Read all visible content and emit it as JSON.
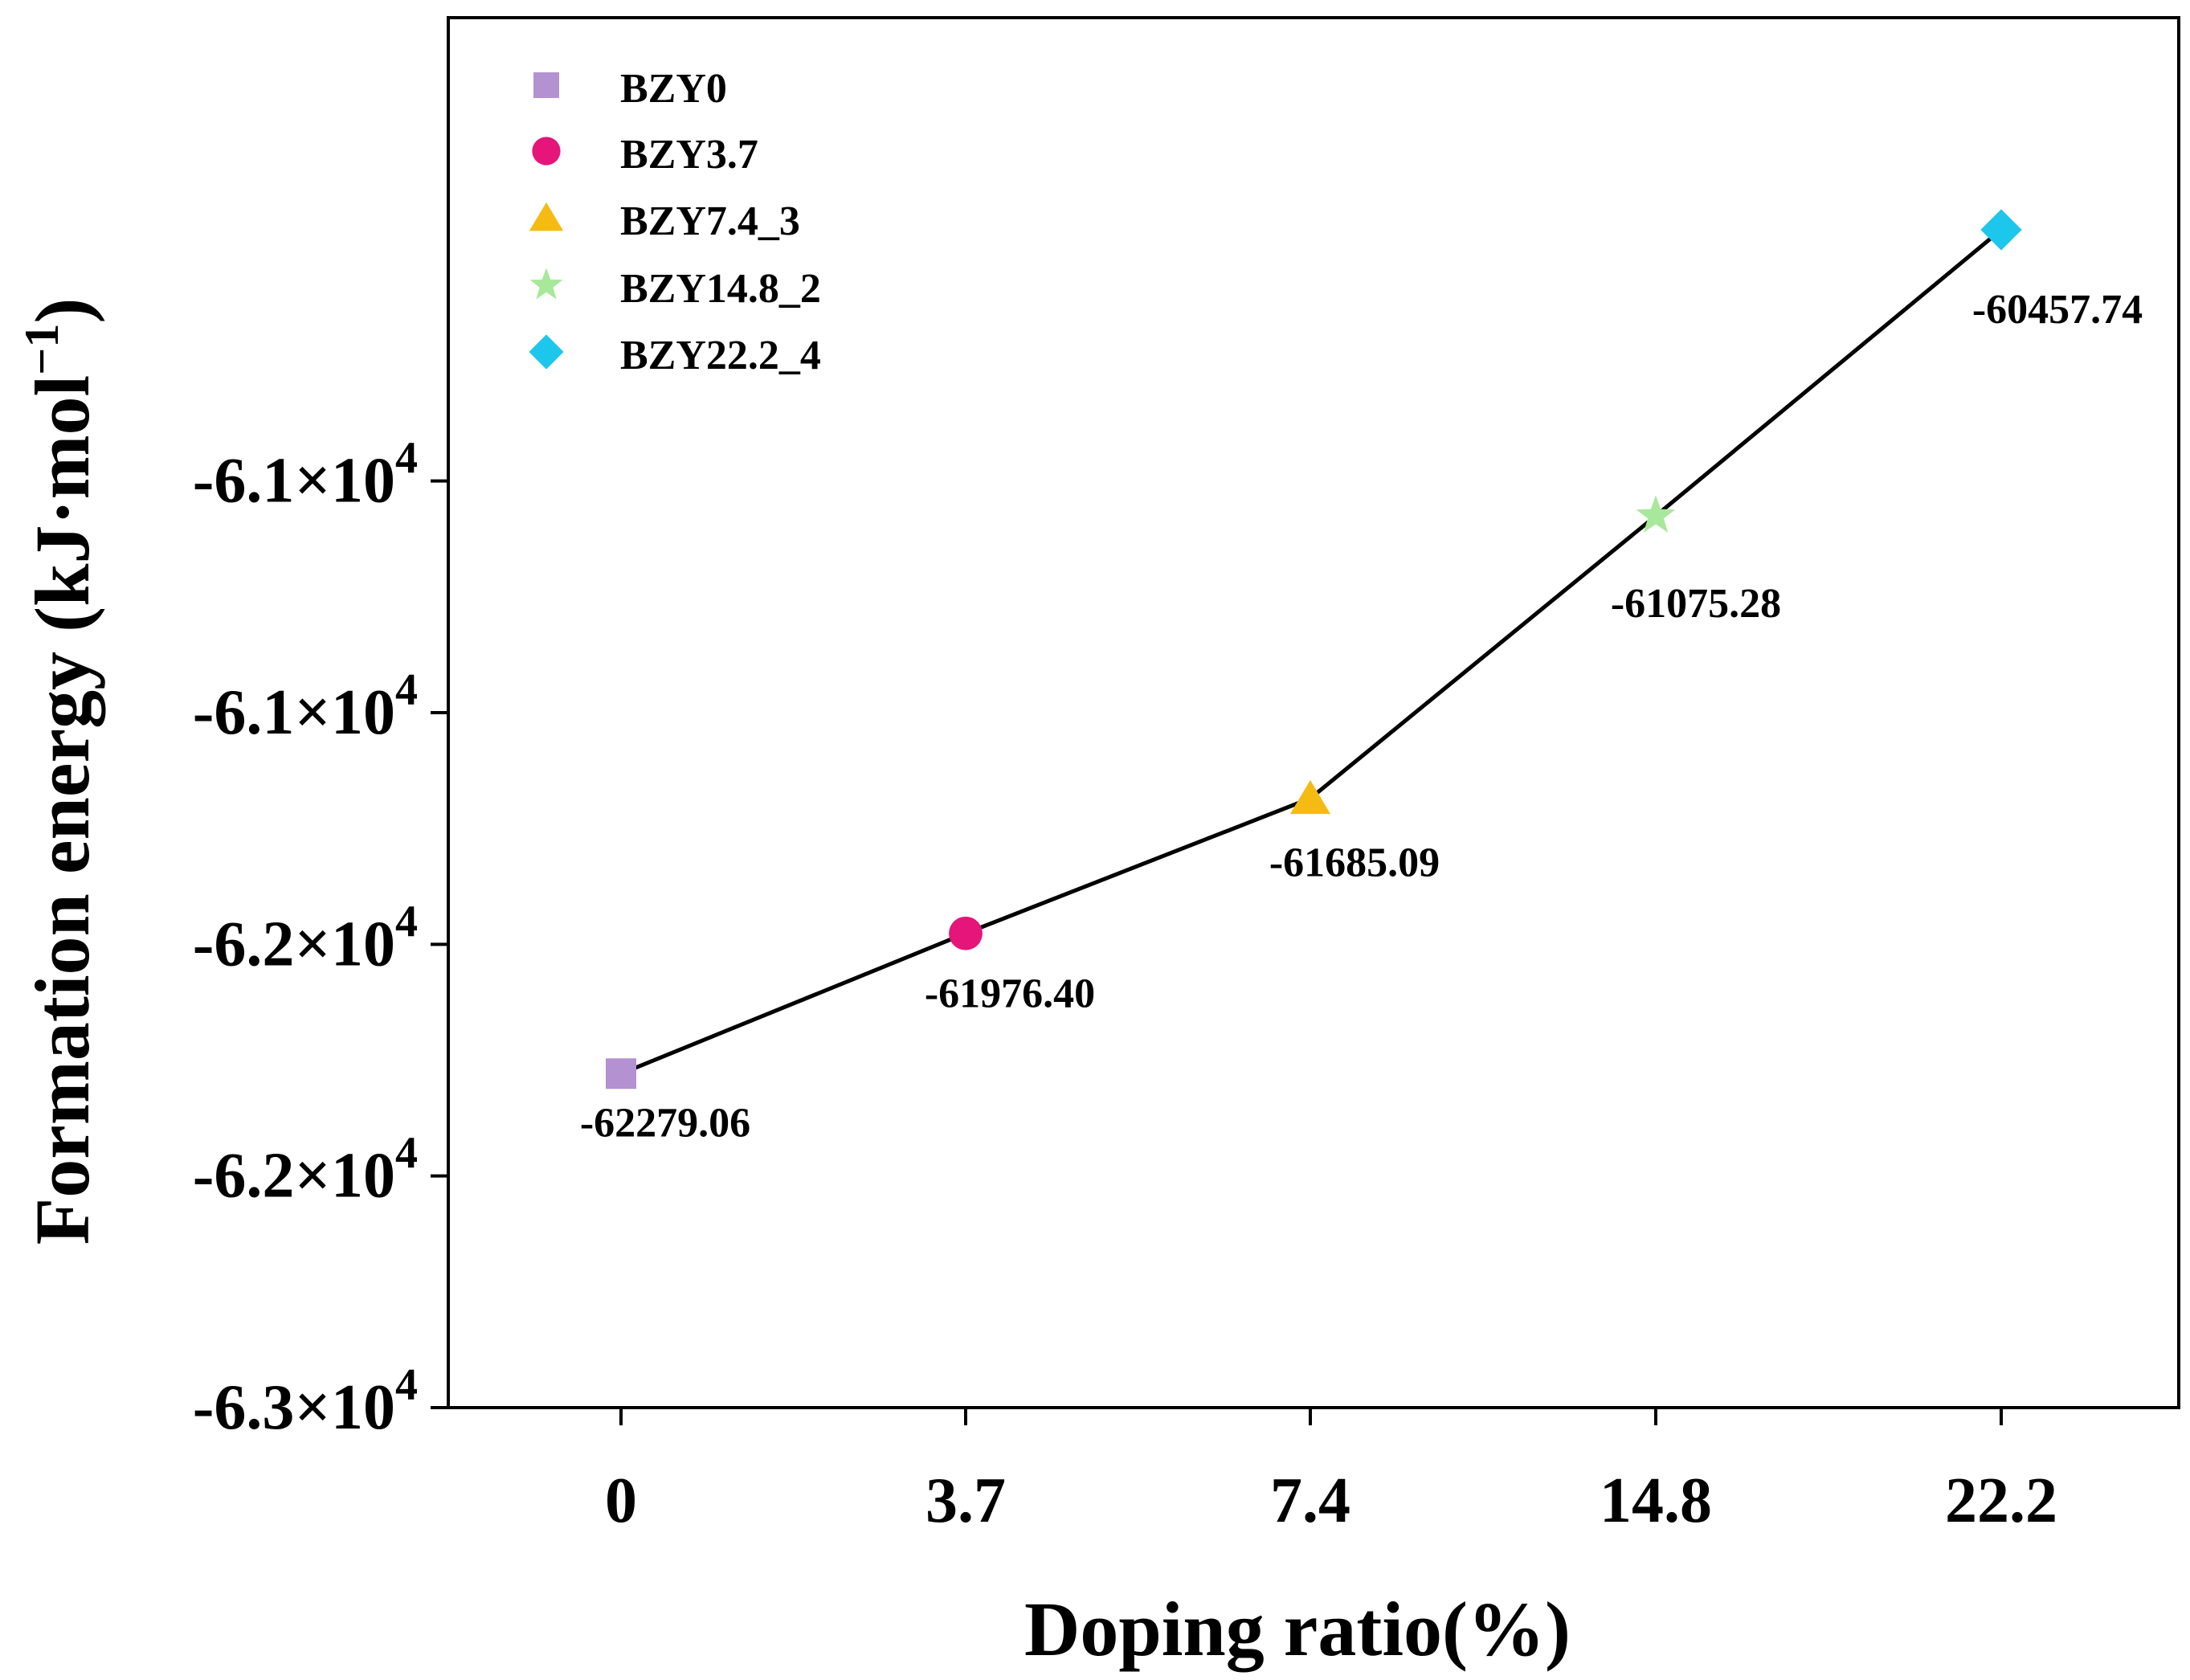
{
  "chart_data": {
    "type": "line",
    "title": "",
    "xlabel": "Doping ratio(%)",
    "ylabel": "Formation energy (kJ·mol",
    "ylabel_superscript": "−1",
    "ylabel_close": ")",
    "categories": [
      "0",
      "3.7",
      "7.4",
      "14.8",
      "22.2"
    ],
    "series": [
      {
        "name": "Formation energy",
        "values": [
          -62279.06,
          -61976.4,
          -61685.09,
          -61075.28,
          -60457.74
        ],
        "labels": [
          "-62279.06",
          "-61976.40",
          "-61685.09",
          "-61075.28",
          "-60457.74"
        ],
        "line_color": "#000000"
      }
    ],
    "markers": [
      {
        "name": "BZY0",
        "shape": "square",
        "color": "#b491d1"
      },
      {
        "name": "BZY3.7",
        "shape": "circle",
        "color": "#e5157a"
      },
      {
        "name": "BZY7.4_3",
        "shape": "triangle",
        "color": "#f6bb13"
      },
      {
        "name": "BZY14.8_2",
        "shape": "star",
        "color": "#a8e89a"
      },
      {
        "name": "BZY22.2_4",
        "shape": "diamond",
        "color": "#1dc7ec"
      }
    ],
    "yticks": [
      {
        "value": -63000,
        "mantissa": "-6.3",
        "times": "×",
        "base": "10",
        "exp": "4"
      },
      {
        "value": -62500,
        "mantissa": "-6.2",
        "times": "×",
        "base": "10",
        "exp": "4"
      },
      {
        "value": -62000,
        "mantissa": "-6.2",
        "times": "×",
        "base": "10",
        "exp": "4"
      },
      {
        "value": -61500,
        "mantissa": "-6.1",
        "times": "×",
        "base": "10",
        "exp": "4"
      },
      {
        "value": -61000,
        "mantissa": "-6.1",
        "times": "×",
        "base": "10",
        "exp": "4"
      }
    ],
    "ylim": [
      -63000,
      -60000
    ],
    "legend_position": "top-left",
    "grid": false
  }
}
